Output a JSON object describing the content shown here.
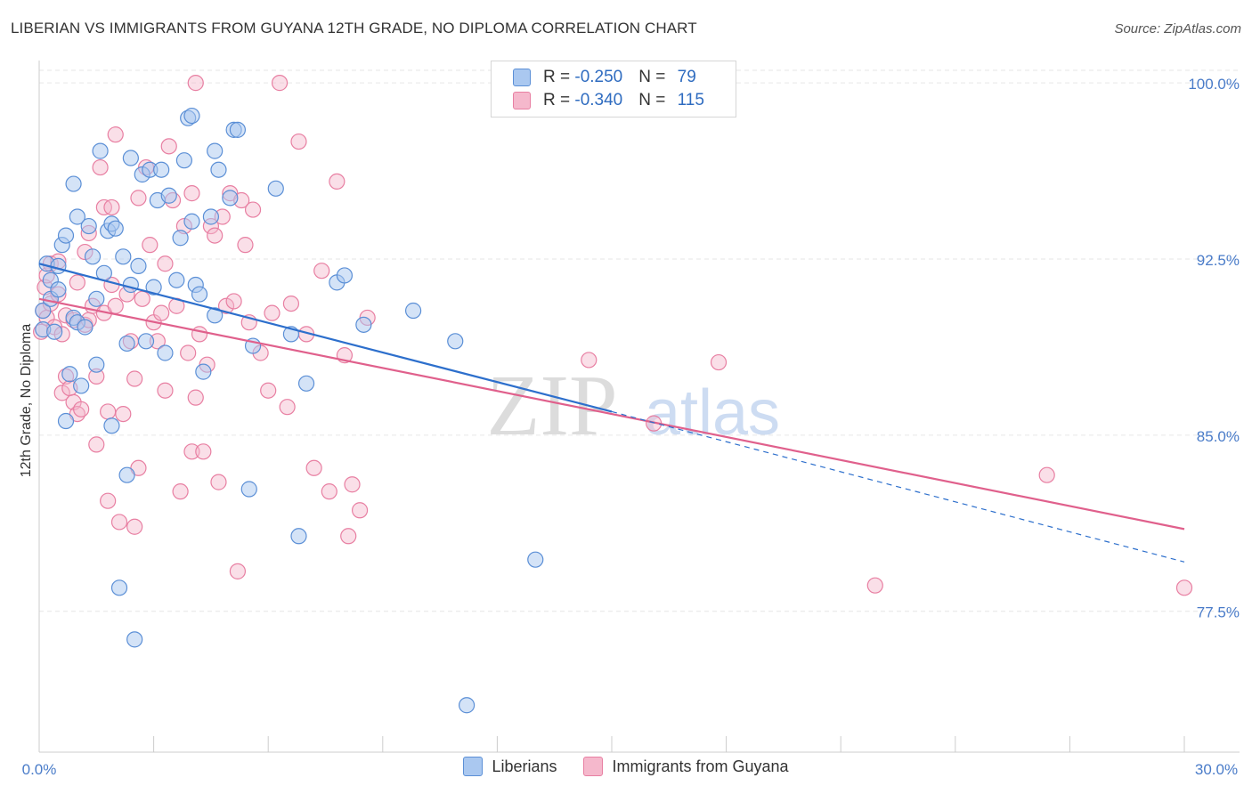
{
  "title": "LIBERIAN VS IMMIGRANTS FROM GUYANA 12TH GRADE, NO DIPLOMA CORRELATION CHART",
  "source": "Source: ZipAtlas.com",
  "watermark": {
    "zip": "ZIP",
    "atlas": "atlas"
  },
  "stats": {
    "liberians": {
      "r_label": "R = ",
      "r_value": "-0.250",
      "n_label": "N = ",
      "n_value": "79"
    },
    "guyana": {
      "r_label": "R = ",
      "r_value": "-0.340",
      "n_label": "N = ",
      "n_value": "115"
    }
  },
  "legend": {
    "liberians": "Liberians",
    "guyana": "Immigrants from Guyana"
  },
  "colors": {
    "blue_fill": "#aac8f0",
    "blue_stroke": "#5b8fd6",
    "blue_line": "#2d6fcc",
    "pink_fill": "#f5b8cc",
    "pink_stroke": "#e87fa2",
    "pink_line": "#e0608c",
    "tick_label": "#4a7cc9",
    "grid": "#e6e6e6"
  },
  "chart_data": {
    "type": "scatter",
    "title": "LIBERIAN VS IMMIGRANTS FROM GUYANA 12TH GRADE, NO DIPLOMA CORRELATION CHART",
    "xlabel": "",
    "ylabel": "12th Grade, No Diploma",
    "xlim": [
      0,
      30
    ],
    "ylim": [
      71.5,
      100.8
    ],
    "x_tick_labels": [
      "0.0%",
      "30.0%"
    ],
    "y_ticks": [
      77.5,
      85.0,
      92.5,
      100.0
    ],
    "y_tick_labels": [
      "77.5%",
      "85.0%",
      "92.5%",
      "100.0%"
    ],
    "legend_position": "bottom",
    "series": [
      {
        "name": "Liberians",
        "trend": {
          "x": [
            0,
            15
          ],
          "y": [
            92.3,
            86.0
          ]
        },
        "trend_dashed": {
          "x": [
            15,
            30
          ],
          "y": [
            86.0,
            79.6
          ]
        },
        "points": [
          [
            0.1,
            90.3
          ],
          [
            0.1,
            89.5
          ],
          [
            0.2,
            92.3
          ],
          [
            0.3,
            90.8
          ],
          [
            0.3,
            91.6
          ],
          [
            0.4,
            89.4
          ],
          [
            0.5,
            92.2
          ],
          [
            0.5,
            91.2
          ],
          [
            0.6,
            93.1
          ],
          [
            0.7,
            93.5
          ],
          [
            0.7,
            85.6
          ],
          [
            0.8,
            87.6
          ],
          [
            0.9,
            90.0
          ],
          [
            0.9,
            95.7
          ],
          [
            1.0,
            94.3
          ],
          [
            1.0,
            89.8
          ],
          [
            1.1,
            87.1
          ],
          [
            1.2,
            89.6
          ],
          [
            1.3,
            93.9
          ],
          [
            1.4,
            92.6
          ],
          [
            1.5,
            90.8
          ],
          [
            1.5,
            88.0
          ],
          [
            1.6,
            97.1
          ],
          [
            1.7,
            91.9
          ],
          [
            1.8,
            93.7
          ],
          [
            1.9,
            94.0
          ],
          [
            1.9,
            85.4
          ],
          [
            2.0,
            93.8
          ],
          [
            2.1,
            78.5
          ],
          [
            2.2,
            92.6
          ],
          [
            2.3,
            88.9
          ],
          [
            2.3,
            83.3
          ],
          [
            2.4,
            96.8
          ],
          [
            2.4,
            91.4
          ],
          [
            2.5,
            76.3
          ],
          [
            2.6,
            92.2
          ],
          [
            2.7,
            96.1
          ],
          [
            2.8,
            89.0
          ],
          [
            2.9,
            96.3
          ],
          [
            3.0,
            91.3
          ],
          [
            3.1,
            95.0
          ],
          [
            3.2,
            96.3
          ],
          [
            3.3,
            88.5
          ],
          [
            3.4,
            95.2
          ],
          [
            3.6,
            91.6
          ],
          [
            3.7,
            93.4
          ],
          [
            3.8,
            96.7
          ],
          [
            3.9,
            98.5
          ],
          [
            4.0,
            98.6
          ],
          [
            4.0,
            94.1
          ],
          [
            4.1,
            91.4
          ],
          [
            4.2,
            91.0
          ],
          [
            4.3,
            87.7
          ],
          [
            4.5,
            94.3
          ],
          [
            4.6,
            90.1
          ],
          [
            4.6,
            97.1
          ],
          [
            4.7,
            96.3
          ],
          [
            5.0,
            95.1
          ],
          [
            5.1,
            98.0
          ],
          [
            5.2,
            98.0
          ],
          [
            5.5,
            82.7
          ],
          [
            5.6,
            88.8
          ],
          [
            6.2,
            95.5
          ],
          [
            6.6,
            89.3
          ],
          [
            6.8,
            80.7
          ],
          [
            7.0,
            87.2
          ],
          [
            7.8,
            91.5
          ],
          [
            8.0,
            91.8
          ],
          [
            8.5,
            89.7
          ],
          [
            9.8,
            90.3
          ],
          [
            10.9,
            89.0
          ],
          [
            11.2,
            73.5
          ],
          [
            13.0,
            79.7
          ]
        ]
      },
      {
        "name": "Immigrants from Guyana",
        "trend": {
          "x": [
            0,
            30
          ],
          "y": [
            90.8,
            81.0
          ]
        },
        "points": [
          [
            0.05,
            89.4
          ],
          [
            0.1,
            90.3
          ],
          [
            0.15,
            91.3
          ],
          [
            0.2,
            90.0
          ],
          [
            0.2,
            91.8
          ],
          [
            0.3,
            90.6
          ],
          [
            0.3,
            92.3
          ],
          [
            0.4,
            89.6
          ],
          [
            0.5,
            91.0
          ],
          [
            0.5,
            92.4
          ],
          [
            0.6,
            86.8
          ],
          [
            0.6,
            89.3
          ],
          [
            0.7,
            90.1
          ],
          [
            0.7,
            87.5
          ],
          [
            0.8,
            87.0
          ],
          [
            0.9,
            86.4
          ],
          [
            0.9,
            89.9
          ],
          [
            1.0,
            85.9
          ],
          [
            1.0,
            91.5
          ],
          [
            1.1,
            86.1
          ],
          [
            1.2,
            92.8
          ],
          [
            1.2,
            89.7
          ],
          [
            1.3,
            93.6
          ],
          [
            1.3,
            89.9
          ],
          [
            1.4,
            90.5
          ],
          [
            1.5,
            87.5
          ],
          [
            1.5,
            84.6
          ],
          [
            1.6,
            96.4
          ],
          [
            1.7,
            94.7
          ],
          [
            1.7,
            90.2
          ],
          [
            1.8,
            82.2
          ],
          [
            1.8,
            86.0
          ],
          [
            1.9,
            94.7
          ],
          [
            1.9,
            91.4
          ],
          [
            2.0,
            97.8
          ],
          [
            2.0,
            90.5
          ],
          [
            2.1,
            81.3
          ],
          [
            2.2,
            85.9
          ],
          [
            2.3,
            91.0
          ],
          [
            2.4,
            89.0
          ],
          [
            2.5,
            81.1
          ],
          [
            2.5,
            87.4
          ],
          [
            2.6,
            83.6
          ],
          [
            2.6,
            95.1
          ],
          [
            2.7,
            90.8
          ],
          [
            2.8,
            96.4
          ],
          [
            2.9,
            93.1
          ],
          [
            3.0,
            89.8
          ],
          [
            3.1,
            89.0
          ],
          [
            3.2,
            90.2
          ],
          [
            3.3,
            92.3
          ],
          [
            3.3,
            86.9
          ],
          [
            3.4,
            97.3
          ],
          [
            3.5,
            95.0
          ],
          [
            3.6,
            90.5
          ],
          [
            3.7,
            82.6
          ],
          [
            3.8,
            93.9
          ],
          [
            3.9,
            88.5
          ],
          [
            4.0,
            84.3
          ],
          [
            4.0,
            95.3
          ],
          [
            4.1,
            86.6
          ],
          [
            4.2,
            89.3
          ],
          [
            4.3,
            84.3
          ],
          [
            4.4,
            88.0
          ],
          [
            4.5,
            93.9
          ],
          [
            4.6,
            93.5
          ],
          [
            4.7,
            83.0
          ],
          [
            4.8,
            94.3
          ],
          [
            4.9,
            90.5
          ],
          [
            5.0,
            95.3
          ],
          [
            5.1,
            90.7
          ],
          [
            5.2,
            79.2
          ],
          [
            5.3,
            95.0
          ],
          [
            5.4,
            93.1
          ],
          [
            5.5,
            89.8
          ],
          [
            5.6,
            94.6
          ],
          [
            5.8,
            88.5
          ],
          [
            6.0,
            86.9
          ],
          [
            6.1,
            90.2
          ],
          [
            6.3,
            100.0
          ],
          [
            6.5,
            86.2
          ],
          [
            6.6,
            90.6
          ],
          [
            6.8,
            97.5
          ],
          [
            7.0,
            89.3
          ],
          [
            7.2,
            83.6
          ],
          [
            7.4,
            92.0
          ],
          [
            7.6,
            82.6
          ],
          [
            7.8,
            95.8
          ],
          [
            8.0,
            88.4
          ],
          [
            8.1,
            80.7
          ],
          [
            8.2,
            82.9
          ],
          [
            8.4,
            81.8
          ],
          [
            8.6,
            90.0
          ],
          [
            4.1,
            100.0
          ],
          [
            14.4,
            88.2
          ],
          [
            16.1,
            85.5
          ],
          [
            17.8,
            88.1
          ],
          [
            21.9,
            78.6
          ],
          [
            26.4,
            83.3
          ],
          [
            30.0,
            78.5
          ]
        ]
      }
    ]
  }
}
